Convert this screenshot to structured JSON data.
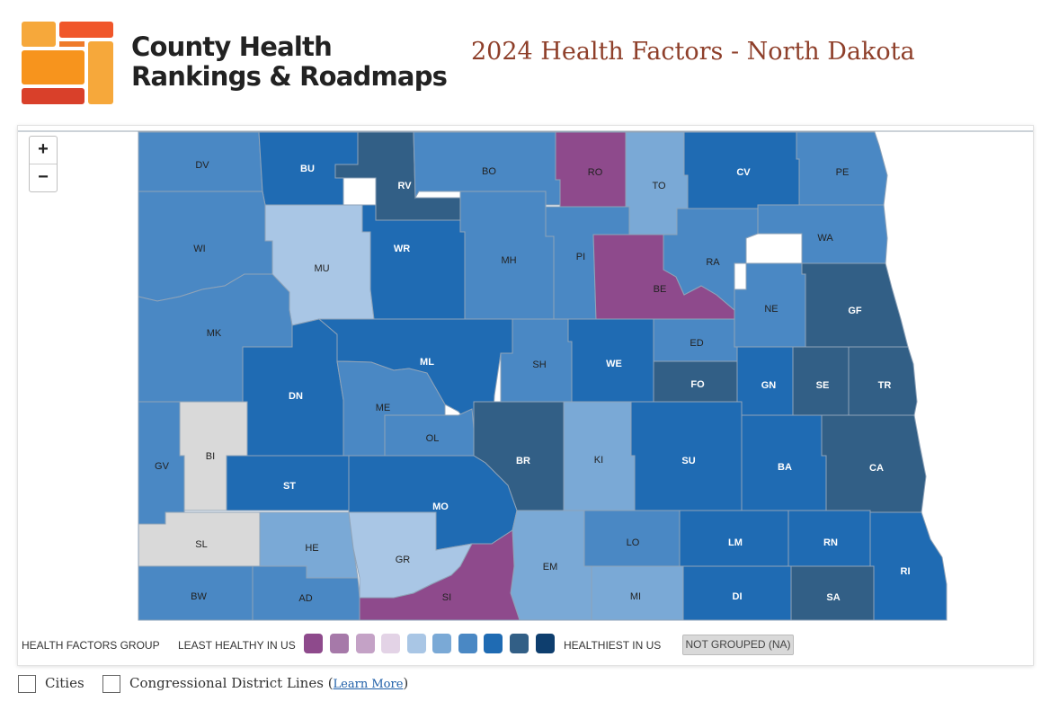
{
  "header": {
    "brand_line1": "County Health",
    "brand_line2": "Rankings & Roadmaps",
    "title": "2024 Health Factors - North Dakota"
  },
  "zoom": {
    "in_label": "+",
    "out_label": "−"
  },
  "colors": {
    "group1": "#8e4a8c",
    "group2": "#a679a9",
    "group3": "#c4a2c6",
    "group4": "#e3d3e6",
    "group5": "#a9c6e5",
    "group6": "#7aa9d6",
    "group7": "#4a88c4",
    "group8": "#1f6bb3",
    "group9": "#325f86",
    "group10": "#0e3e6e",
    "na": "#d9d9d9",
    "border": "#8fa3b8"
  },
  "legend": {
    "group_label": "HEALTH FACTORS GROUP",
    "least_label": "LEAST HEALTHY IN US",
    "healthiest_label": "HEALTHIEST IN US",
    "na_label": "NOT GROUPED (NA)"
  },
  "controls": {
    "cities_label": "Cities",
    "districts_label": "Congressional District Lines",
    "learn_more_label": "Learn More"
  },
  "counties": [
    {
      "abbr": "DV",
      "group": 7
    },
    {
      "abbr": "BU",
      "group": 8
    },
    {
      "abbr": "RV",
      "group": 9
    },
    {
      "abbr": "BO",
      "group": 7
    },
    {
      "abbr": "RO",
      "group": 1
    },
    {
      "abbr": "TO",
      "group": 6
    },
    {
      "abbr": "CV",
      "group": 8
    },
    {
      "abbr": "PE",
      "group": 7
    },
    {
      "abbr": "WI",
      "group": 7
    },
    {
      "abbr": "MU",
      "group": 5
    },
    {
      "abbr": "WR",
      "group": 8
    },
    {
      "abbr": "MH",
      "group": 7
    },
    {
      "abbr": "PI",
      "group": 7
    },
    {
      "abbr": "BE",
      "group": 1
    },
    {
      "abbr": "RA",
      "group": 7
    },
    {
      "abbr": "WA",
      "group": 7
    },
    {
      "abbr": "NE",
      "group": 7
    },
    {
      "abbr": "GF",
      "group": 9
    },
    {
      "abbr": "MK",
      "group": 7
    },
    {
      "abbr": "DN",
      "group": 8
    },
    {
      "abbr": "ML",
      "group": 8
    },
    {
      "abbr": "SH",
      "group": 7
    },
    {
      "abbr": "WE",
      "group": 8
    },
    {
      "abbr": "ED",
      "group": 7
    },
    {
      "abbr": "FO",
      "group": 9
    },
    {
      "abbr": "GN",
      "group": 8
    },
    {
      "abbr": "SE",
      "group": 9
    },
    {
      "abbr": "TR",
      "group": 9
    },
    {
      "abbr": "ME",
      "group": 7
    },
    {
      "abbr": "OL",
      "group": 7
    },
    {
      "abbr": "GV",
      "group": 7
    },
    {
      "abbr": "BI",
      "group": "na"
    },
    {
      "abbr": "BR",
      "group": 9
    },
    {
      "abbr": "KI",
      "group": 6
    },
    {
      "abbr": "SU",
      "group": 8
    },
    {
      "abbr": "BA",
      "group": 8
    },
    {
      "abbr": "CA",
      "group": 9
    },
    {
      "abbr": "ST",
      "group": 8
    },
    {
      "abbr": "MO",
      "group": 8
    },
    {
      "abbr": "SL",
      "group": "na"
    },
    {
      "abbr": "HE",
      "group": 6
    },
    {
      "abbr": "GR",
      "group": 5
    },
    {
      "abbr": "EM",
      "group": 6
    },
    {
      "abbr": "LO",
      "group": 7
    },
    {
      "abbr": "LM",
      "group": 8
    },
    {
      "abbr": "RN",
      "group": 8
    },
    {
      "abbr": "RI",
      "group": 8
    },
    {
      "abbr": "BW",
      "group": 7
    },
    {
      "abbr": "AD",
      "group": 7
    },
    {
      "abbr": "SI",
      "group": 1
    },
    {
      "abbr": "MI",
      "group": 6
    },
    {
      "abbr": "DI",
      "group": 8
    },
    {
      "abbr": "SA",
      "group": 9
    }
  ]
}
